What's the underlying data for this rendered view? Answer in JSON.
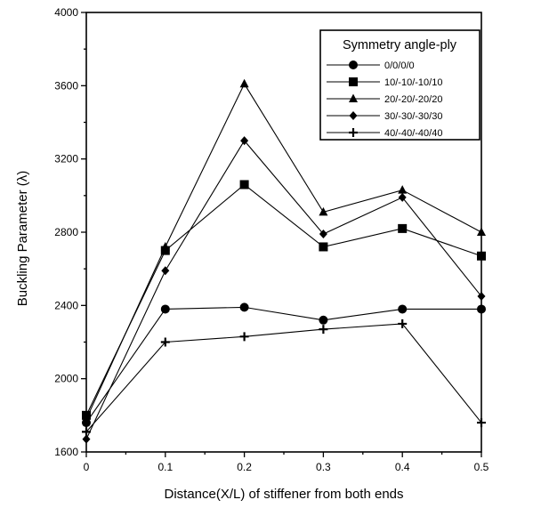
{
  "chart_data": {
    "type": "line",
    "xlabel": "Distance(X/L) of stiffener from both ends",
    "ylabel": "Buckling Parameter (λ)",
    "xlim": [
      0,
      0.5
    ],
    "ylim": [
      1600,
      4000
    ],
    "x_ticks": [
      0,
      0.1,
      0.2,
      0.3,
      0.4,
      0.5
    ],
    "x_tick_labels": [
      "0",
      "0.1",
      "0.2",
      "0.3",
      "0.4",
      "0.5"
    ],
    "y_ticks": [
      1600,
      2000,
      2400,
      2800,
      3200,
      3600,
      4000
    ],
    "y_tick_labels": [
      "1600",
      "2000",
      "2400",
      "2800",
      "3200",
      "3600",
      "4000"
    ],
    "grid": false,
    "legend_title": "Symmetry angle-ply",
    "legend_position": "top-right",
    "x": [
      0,
      0.1,
      0.2,
      0.3,
      0.4,
      0.5
    ],
    "series": [
      {
        "name": "0/0/0/0",
        "marker": "circle",
        "values": [
          1760,
          2380,
          2390,
          2320,
          2380,
          2380
        ]
      },
      {
        "name": "10/-10/-10/10",
        "marker": "square",
        "values": [
          1800,
          2700,
          3060,
          2720,
          2820,
          2670
        ]
      },
      {
        "name": "20/-20/-20/20",
        "marker": "triangle",
        "values": [
          1780,
          2720,
          3610,
          2910,
          3030,
          2800
        ]
      },
      {
        "name": "30/-30/-30/30",
        "marker": "diamond",
        "values": [
          1670,
          2590,
          3300,
          2790,
          2990,
          2450
        ]
      },
      {
        "name": "40/-40/-40/40",
        "marker": "plus",
        "values": [
          1710,
          2200,
          2230,
          2270,
          2300,
          1760
        ]
      }
    ]
  }
}
